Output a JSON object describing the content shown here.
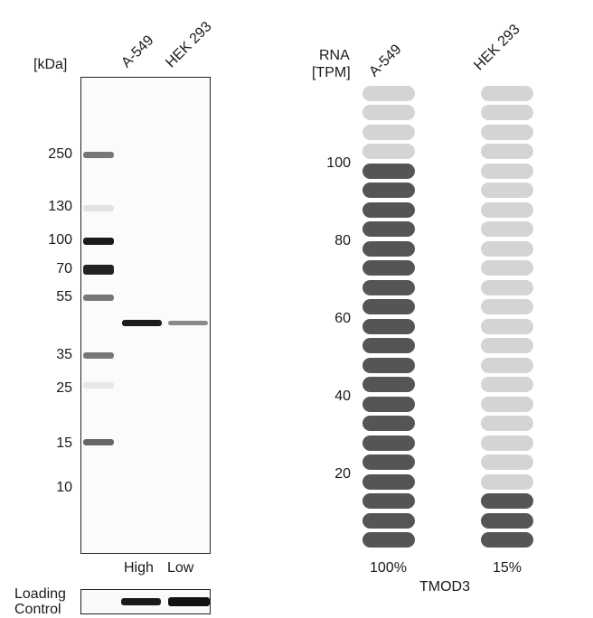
{
  "western_blot": {
    "unit_label": "[kDa]",
    "lanes": [
      "A-549",
      "HEK 293"
    ],
    "markers": [
      "250",
      "130",
      "100",
      "70",
      "55",
      "35",
      "25",
      "15",
      "10"
    ],
    "lane_levels": [
      "High",
      "Low"
    ],
    "loading_control_label_line1": "Loading",
    "loading_control_label_line2": "Control"
  },
  "rna_chart": {
    "axis_label_line1": "RNA",
    "axis_label_line2": "[TPM]",
    "lanes": [
      "A-549",
      "HEK 293"
    ],
    "ticks": [
      "100",
      "80",
      "60",
      "40",
      "20"
    ],
    "percents": [
      "100%",
      "15%"
    ],
    "gene": "TMOD3",
    "colors": {
      "filled": "#555555",
      "empty": "#d4d4d4"
    }
  },
  "chart_data": {
    "type": "bar",
    "categories": [
      "A-549",
      "HEK 293"
    ],
    "values": [
      100,
      15
    ],
    "units_per_segment": 5,
    "total_segments": 24,
    "ylabel": "RNA [TPM]",
    "xlabel": "TMOD3",
    "yticks": [
      20,
      40,
      60,
      80,
      100
    ]
  }
}
